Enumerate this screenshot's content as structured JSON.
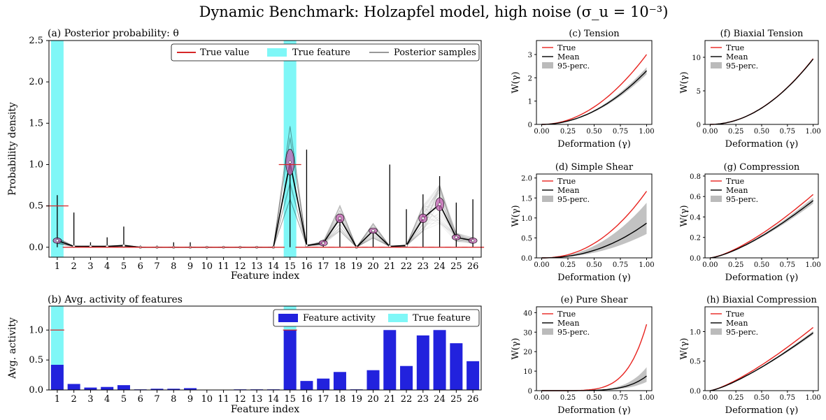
{
  "figure": {
    "title": "Dynamic Benchmark: Holzapfel model, high noise (σ_u = 10⁻³)"
  },
  "chart_data": [
    {
      "id": "a",
      "type": "scatter",
      "title": "(a) Posterior  probability: θ",
      "xlabel": "Feature index",
      "ylabel": "Probability density",
      "categories": [
        "1",
        "2",
        "3",
        "4",
        "5",
        "6",
        "7",
        "8",
        "9",
        "10",
        "11",
        "12",
        "13",
        "14",
        "15",
        "16",
        "17",
        "18",
        "19",
        "20",
        "21",
        "22",
        "23",
        "24",
        "25",
        "26"
      ],
      "ylim": [
        -0.12,
        2.5
      ],
      "yticks": [
        0.0,
        0.5,
        1.0,
        1.5,
        2.0,
        2.5
      ],
      "true_features": [
        1,
        15
      ],
      "true_values": [
        0.5,
        0,
        0,
        0,
        0,
        0,
        0,
        0,
        0,
        0,
        0,
        0,
        0,
        0,
        1.0,
        0,
        0,
        0,
        0,
        0,
        0,
        0,
        0,
        0,
        0,
        0
      ],
      "posterior_means": [
        0.08,
        0.01,
        0.01,
        0.01,
        0.02,
        0.0,
        0.0,
        0.0,
        0.0,
        0.0,
        0.0,
        0.0,
        0.0,
        0.0,
        1.03,
        0.02,
        0.05,
        0.35,
        0.0,
        0.2,
        0.01,
        0.02,
        0.35,
        0.52,
        0.12,
        0.08
      ],
      "posterior_max": [
        0.63,
        0.42,
        0.06,
        0.12,
        0.25,
        0.02,
        0.02,
        0.06,
        0.06,
        0.01,
        0.01,
        0.01,
        0.01,
        0.01,
        1.05,
        1.18,
        0.09,
        0.37,
        0.02,
        0.21,
        1.0,
        0.46,
        0.64,
        0.86,
        0.54,
        0.58
      ],
      "legend": [
        {
          "label": "True value",
          "color": "#d62728",
          "kind": "line"
        },
        {
          "label": "True feature",
          "color": "#7ff7f7",
          "kind": "patch"
        },
        {
          "label": "Posterior samples",
          "color": "#999999",
          "kind": "line"
        }
      ],
      "legend_position": "top-right"
    },
    {
      "id": "b",
      "type": "bar",
      "title": "(b) Avg. activity of features",
      "xlabel": "Feature index",
      "ylabel": "Avg. activity",
      "categories": [
        "1",
        "2",
        "3",
        "4",
        "5",
        "6",
        "7",
        "8",
        "9",
        "10",
        "11",
        "12",
        "13",
        "14",
        "15",
        "16",
        "17",
        "18",
        "19",
        "20",
        "21",
        "22",
        "23",
        "24",
        "25",
        "26"
      ],
      "values": [
        0.42,
        0.1,
        0.04,
        0.05,
        0.08,
        0.01,
        0.02,
        0.02,
        0.03,
        0.0,
        0.0,
        0.01,
        0.01,
        0.01,
        1.0,
        0.15,
        0.19,
        0.3,
        0.01,
        0.33,
        1.0,
        0.4,
        0.91,
        1.0,
        0.78,
        0.48
      ],
      "ylim": [
        0,
        1.4
      ],
      "yticks": [
        0.0,
        0.5,
        1.0
      ],
      "true_features": [
        1,
        15
      ],
      "true_value_marker": 1.0,
      "legend": [
        {
          "label": "Feature activity",
          "color": "#2222dd",
          "kind": "patch"
        },
        {
          "label": "True feature",
          "color": "#7ff7f7",
          "kind": "patch"
        }
      ],
      "legend_position": "top-right"
    },
    {
      "id": "c",
      "type": "line",
      "title": "(c) Tension",
      "xlabel": "Deformation (γ)",
      "ylabel": "W(γ)",
      "xlim": [
        -0.05,
        1.05
      ],
      "ylim": [
        0,
        3.6
      ],
      "xticks": [
        "0.00",
        "0.25",
        "0.50",
        "0.75",
        "1.00"
      ],
      "yticks": [
        "0",
        "1",
        "2",
        "3"
      ],
      "true_end": 3.0,
      "mean_end": 2.3,
      "band_lo_end": 2.15,
      "band_hi_end": 2.45,
      "exponent": 2.0,
      "legend": [
        "True",
        "Mean",
        "95-perc."
      ]
    },
    {
      "id": "d",
      "type": "line",
      "title": "(d) Simple Shear",
      "xlabel": "Deformation (γ)",
      "ylabel": "W(γ)",
      "xlim": [
        -0.05,
        1.05
      ],
      "ylim": [
        0,
        2.1
      ],
      "xticks": [
        "0.00",
        "0.25",
        "0.50",
        "0.75",
        "1.00"
      ],
      "yticks": [
        "0.0",
        "0.5",
        "1.0",
        "1.5",
        "2.0"
      ],
      "true_end": 1.67,
      "mean_end": 0.87,
      "band_lo_end": 0.6,
      "band_hi_end": 1.38,
      "exponent": 2.2,
      "legend": [
        "True",
        "Mean",
        "95-perc."
      ]
    },
    {
      "id": "e",
      "type": "line",
      "title": "(e) Pure Shear",
      "xlabel": "Deformation (γ)",
      "ylabel": "W(γ)",
      "xlim": [
        -0.05,
        1.05
      ],
      "ylim": [
        0,
        43
      ],
      "xticks": [
        "0.00",
        "0.25",
        "0.50",
        "0.75",
        "1.00"
      ],
      "yticks": [
        "0",
        "10",
        "20",
        "30",
        "40"
      ],
      "true_end": 34.0,
      "mean_end": 7.5,
      "band_lo_end": 4.5,
      "band_hi_end": 12.0,
      "exponent": 5.5,
      "legend": [
        "True",
        "Mean",
        "95-perc."
      ]
    },
    {
      "id": "f",
      "type": "line",
      "title": "(f) Biaxial Tension",
      "xlabel": "Deformation (γ)",
      "ylabel": "W(γ)",
      "xlim": [
        -0.05,
        1.05
      ],
      "ylim": [
        0,
        12.5
      ],
      "xticks": [
        "0.00",
        "0.25",
        "0.50",
        "0.75",
        "1.00"
      ],
      "yticks": [
        "0",
        "5",
        "10"
      ],
      "true_end": 9.8,
      "mean_end": 9.75,
      "band_lo_end": 9.7,
      "band_hi_end": 9.85,
      "exponent": 2.0,
      "legend": [
        "True",
        "Mean",
        "95-perc."
      ]
    },
    {
      "id": "g",
      "type": "line",
      "title": "(g) Compression",
      "xlabel": "Deformation (γ)",
      "ylabel": "W(γ)",
      "xlim": [
        -0.05,
        1.05
      ],
      "ylim": [
        0,
        0.82
      ],
      "xticks": [
        "0.00",
        "0.25",
        "0.50",
        "0.75",
        "1.00"
      ],
      "yticks": [
        "0.0",
        "0.2",
        "0.4",
        "0.6",
        "0.8"
      ],
      "true_end": 0.62,
      "mean_end": 0.56,
      "band_lo_end": 0.53,
      "band_hi_end": 0.59,
      "exponent": 1.4,
      "legend": [
        "True",
        "Mean",
        "95-perc."
      ]
    },
    {
      "id": "h",
      "type": "line",
      "title": "(h) Biaxial Compression",
      "xlabel": "Deformation (γ)",
      "ylabel": "W(γ)",
      "xlim": [
        -0.05,
        1.05
      ],
      "ylim": [
        0,
        1.42
      ],
      "xticks": [
        "0.00",
        "0.25",
        "0.50",
        "0.75",
        "1.00"
      ],
      "yticks": [
        "0.0",
        "0.5",
        "1.0"
      ],
      "true_end": 1.07,
      "mean_end": 0.98,
      "band_lo_end": 0.95,
      "band_hi_end": 1.01,
      "exponent": 1.3,
      "legend": [
        "True",
        "Mean",
        "95-perc."
      ]
    }
  ]
}
